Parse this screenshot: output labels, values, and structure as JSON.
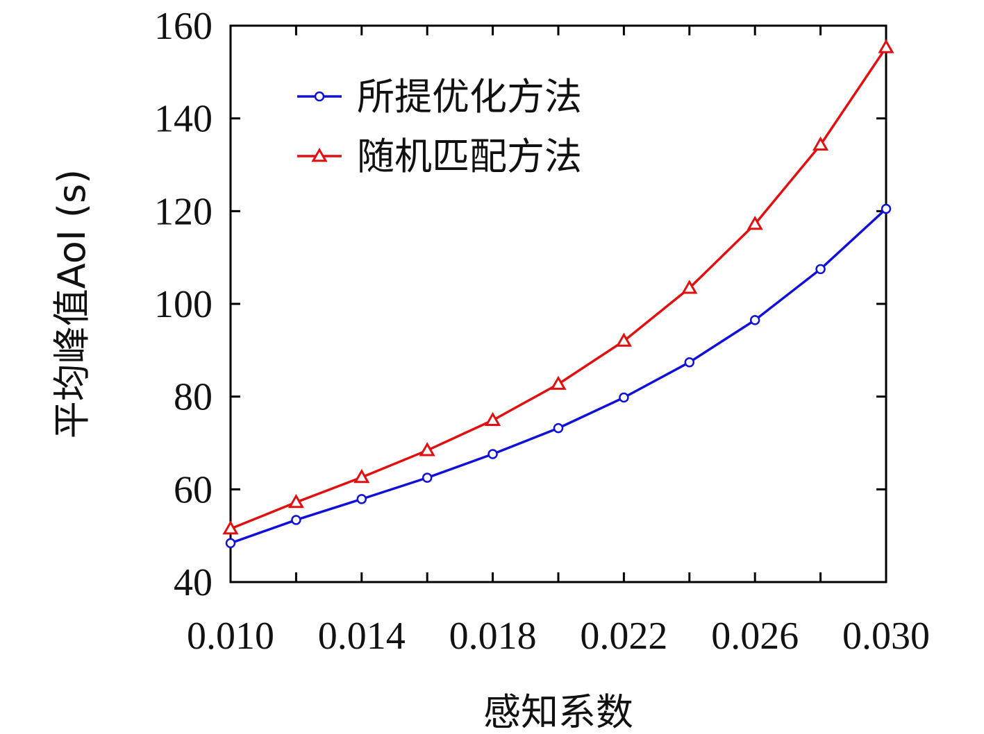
{
  "chart_data": {
    "type": "line",
    "title": "",
    "xlabel": "感知系数",
    "ylabel": "平均峰值AoI (s)",
    "xlim": [
      0.01,
      0.03
    ],
    "ylim": [
      40,
      160
    ],
    "x": [
      0.01,
      0.012,
      0.014,
      0.016,
      0.018,
      0.02,
      0.022,
      0.024,
      0.026,
      0.028,
      0.03
    ],
    "xticks": [
      "0.010",
      "0.014",
      "0.018",
      "0.022",
      "0.026",
      "0.030"
    ],
    "xtick_values": [
      0.01,
      0.014,
      0.018,
      0.022,
      0.026,
      0.03
    ],
    "yticks": [
      "40",
      "60",
      "80",
      "100",
      "120",
      "140",
      "160"
    ],
    "ytick_values": [
      40,
      60,
      80,
      100,
      120,
      140,
      160
    ],
    "grid": false,
    "legend_position": "top-left",
    "series": [
      {
        "name": "所提优化方法",
        "color": "#1010d8",
        "marker": "circle",
        "values": [
          48.4,
          53.4,
          57.9,
          62.5,
          67.6,
          73.2,
          79.8,
          87.4,
          96.5,
          107.5,
          120.5
        ]
      },
      {
        "name": "随机匹配方法",
        "color": "#e01010",
        "marker": "triangle",
        "values": [
          51.5,
          57.2,
          62.6,
          68.4,
          74.9,
          82.7,
          92.0,
          103.4,
          117.2,
          134.3,
          155.3
        ]
      }
    ]
  }
}
